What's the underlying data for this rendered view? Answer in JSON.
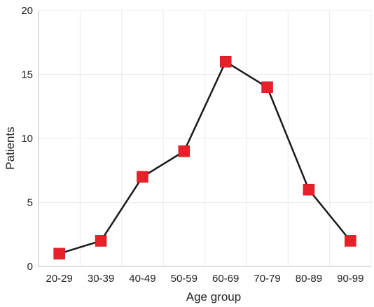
{
  "chart_data": {
    "type": "line",
    "title": "",
    "xlabel": "Age group",
    "ylabel": "Patients",
    "categories": [
      "20-29",
      "30-39",
      "40-49",
      "50-59",
      "60-69",
      "70-79",
      "80-89",
      "90-99"
    ],
    "series": [
      {
        "values": [
          1,
          2,
          7,
          9,
          16,
          14,
          6,
          2
        ]
      }
    ],
    "ylim": [
      0,
      20
    ],
    "yticks": [
      0,
      5,
      10,
      15,
      20
    ],
    "grid": true,
    "legend": "none",
    "colors": {
      "marker": "#e8202a",
      "line": "#1a1a1a",
      "grid": "#ececec",
      "axis": "#bdbdbd"
    }
  }
}
